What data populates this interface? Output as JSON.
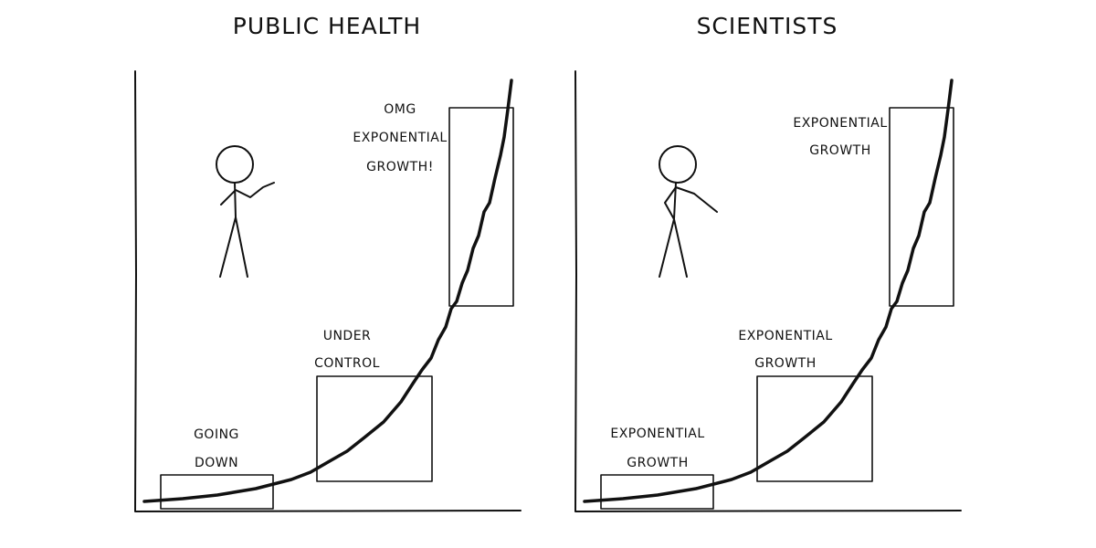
{
  "panels": [
    {
      "title": "PUBLIC HEALTH",
      "annotations": [
        [
          "GOING",
          "DOWN"
        ],
        [
          "UNDER",
          "CONTROL"
        ],
        [
          "OMG",
          "EXPONENTIAL",
          "GROWTH!"
        ]
      ]
    },
    {
      "title": "SCIENTISTS",
      "annotations": [
        [
          "EXPONENTIAL",
          "GROWTH"
        ],
        [
          "EXPONENTIAL",
          "GROWTH"
        ],
        [
          "EXPONENTIAL",
          "GROWTH"
        ]
      ]
    }
  ]
}
